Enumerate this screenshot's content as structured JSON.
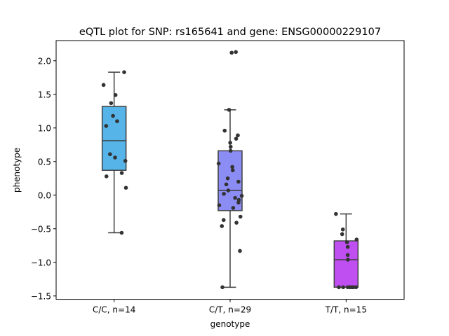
{
  "chart_data": {
    "type": "box",
    "title": "eQTL plot for SNP: rs165641 and gene: ENSG00000229107",
    "xlabel": "genotype",
    "ylabel": "phenotype",
    "ylim": [
      -1.55,
      2.3
    ],
    "yticks": [
      -1.5,
      -1.0,
      -0.5,
      0.0,
      0.5,
      1.0,
      1.5,
      2.0
    ],
    "ytick_labels": [
      "−1.5",
      "−1.0",
      "−0.5",
      "0.0",
      "0.5",
      "1.0",
      "1.5",
      "2.0"
    ],
    "grid": false,
    "categories": [
      "C/C, n=14",
      "C/T, n=29",
      "T/T, n=15"
    ],
    "colors": [
      "#56b4e9",
      "#8c8cf5",
      "#bf4ff0"
    ],
    "box_stats": [
      {
        "min": -0.56,
        "q1": 0.37,
        "median": 0.81,
        "q3": 1.32,
        "max": 1.83
      },
      {
        "min": -1.37,
        "q1": -0.23,
        "median": 0.07,
        "q3": 0.66,
        "max": 1.27
      },
      {
        "min": -1.37,
        "q1": -1.37,
        "median": -0.96,
        "q3": -0.68,
        "max": -0.28
      }
    ],
    "points": [
      [
        1.83,
        1.64,
        1.49,
        1.37,
        1.18,
        1.1,
        1.03,
        0.61,
        0.56,
        0.51,
        0.33,
        0.28,
        0.11,
        -0.56
      ],
      [
        2.13,
        2.12,
        1.27,
        0.96,
        0.89,
        0.84,
        0.78,
        0.72,
        0.66,
        0.47,
        0.42,
        0.37,
        0.25,
        0.2,
        0.16,
        0.07,
        0.02,
        -0.01,
        -0.04,
        -0.07,
        -0.11,
        -0.15,
        -0.19,
        -0.32,
        -0.37,
        -0.41,
        -0.46,
        -0.83,
        -1.37
      ],
      [
        -0.28,
        -0.51,
        -0.58,
        -0.66,
        -0.7,
        -0.77,
        -0.89,
        -0.96,
        -1.37,
        -1.37,
        -1.37,
        -1.37,
        -1.37,
        -1.37,
        -1.37
      ]
    ]
  }
}
